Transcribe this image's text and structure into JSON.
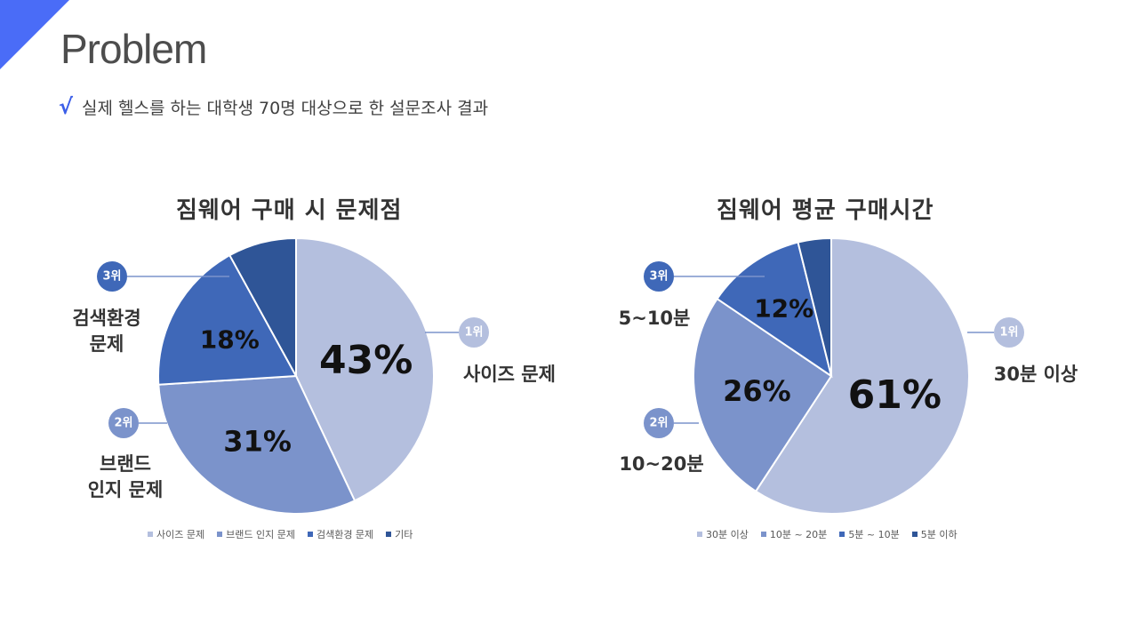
{
  "header": {
    "title": "Problem",
    "check_mark": "√",
    "subtitle": "실제 헬스를 하는 대학생 70명 대상으로 한 설문조사 결과"
  },
  "chart_data": [
    {
      "type": "pie",
      "title": "짐웨어 구매 시 문제점",
      "categories": [
        "사이즈 문제",
        "브랜드 인지 문제",
        "검색환경 문제",
        "기타"
      ],
      "values": [
        43,
        31,
        18,
        8
      ],
      "value_labels": [
        "43%",
        "31%",
        "18%",
        ""
      ],
      "colors": [
        "#b4bfde",
        "#7b93cb",
        "#3f68b8",
        "#2f5597"
      ],
      "legend_position": "bottom",
      "rank_callouts": [
        {
          "rank": "1위",
          "label": [
            "사이즈 문제"
          ]
        },
        {
          "rank": "2위",
          "label": [
            "브랜드",
            "인지 문제"
          ]
        },
        {
          "rank": "3위",
          "label": [
            "검색환경",
            "문제"
          ]
        }
      ]
    },
    {
      "type": "pie",
      "title": "짐웨어 평균 구매시간",
      "categories": [
        "30분 이상",
        "10분 ~ 20분",
        "5분 ~ 10분",
        "5분 이하"
      ],
      "values": [
        61,
        26,
        12,
        4
      ],
      "value_labels": [
        "61%",
        "26%",
        "12%",
        ""
      ],
      "colors": [
        "#b4bfde",
        "#7b93cb",
        "#3f68b8",
        "#2f5597"
      ],
      "legend_position": "bottom",
      "rank_callouts": [
        {
          "rank": "1위",
          "label": [
            "30분 이상"
          ]
        },
        {
          "rank": "2위",
          "label": [
            "10~20분"
          ]
        },
        {
          "rank": "3위",
          "label": [
            "5~10분"
          ]
        }
      ]
    }
  ]
}
